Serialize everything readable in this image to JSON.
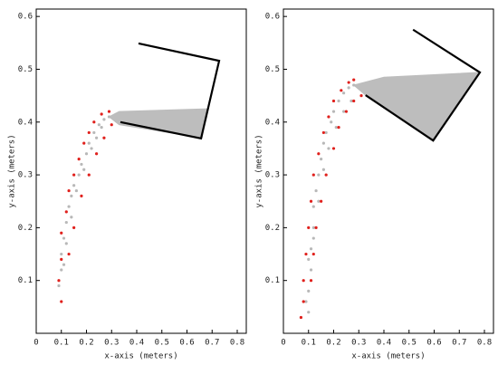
{
  "chart_data": [
    {
      "type": "scatter",
      "xlabel": "x-axis (meters)",
      "ylabel": "y-axis (meters)",
      "xlim": [
        0,
        0.836
      ],
      "ylim": [
        0,
        0.614
      ],
      "xticks": [
        0,
        0.1,
        0.2,
        0.3,
        0.4,
        0.5,
        0.6,
        0.7,
        0.8
      ],
      "yticks": [
        0.1,
        0.2,
        0.3,
        0.4,
        0.5,
        0.6
      ],
      "series": [
        {
          "style": "area",
          "color": "#bdbdbd",
          "x": [
            0.29,
            0.33,
            0.68,
            0.66,
            0.33
          ],
          "values": [
            0.41,
            0.42,
            0.425,
            0.37,
            0.395
          ]
        },
        {
          "style": "points",
          "color": "#b8b8b8",
          "x": [
            0.09,
            0.1,
            0.1,
            0.11,
            0.12,
            0.13,
            0.14,
            0.15,
            0.17,
            0.18,
            0.2,
            0.21,
            0.23,
            0.25,
            0.27,
            0.29,
            0.11,
            0.12,
            0.14,
            0.16,
            0.19,
            0.22,
            0.24,
            0.26
          ],
          "values": [
            0.09,
            0.12,
            0.15,
            0.18,
            0.21,
            0.24,
            0.26,
            0.28,
            0.3,
            0.32,
            0.34,
            0.36,
            0.38,
            0.395,
            0.405,
            0.41,
            0.13,
            0.17,
            0.22,
            0.27,
            0.31,
            0.35,
            0.37,
            0.39
          ]
        },
        {
          "style": "points",
          "color": "#e0201c",
          "x": [
            0.1,
            0.09,
            0.1,
            0.1,
            0.12,
            0.13,
            0.15,
            0.17,
            0.19,
            0.21,
            0.23,
            0.26,
            0.29,
            0.13,
            0.15,
            0.18,
            0.21,
            0.24,
            0.27,
            0.3
          ],
          "values": [
            0.06,
            0.1,
            0.14,
            0.19,
            0.23,
            0.27,
            0.3,
            0.33,
            0.36,
            0.38,
            0.4,
            0.415,
            0.42,
            0.15,
            0.2,
            0.26,
            0.3,
            0.34,
            0.37,
            0.395
          ]
        },
        {
          "style": "line",
          "color": "#000000",
          "x": [
            0.407,
            0.728,
            0.656,
            0.335
          ],
          "values": [
            0.549,
            0.516,
            0.369,
            0.4
          ]
        }
      ]
    },
    {
      "type": "scatter",
      "xlabel": "x-axis (meters)",
      "ylabel": "y-axis (meters)",
      "xlim": [
        0,
        0.836
      ],
      "ylim": [
        0,
        0.614
      ],
      "xticks": [
        0,
        0.1,
        0.2,
        0.3,
        0.4,
        0.5,
        0.6,
        0.7,
        0.8
      ],
      "yticks": [
        0.1,
        0.2,
        0.3,
        0.4,
        0.5,
        0.6
      ],
      "series": [
        {
          "style": "area",
          "color": "#bdbdbd",
          "x": [
            0.28,
            0.4,
            0.782,
            0.596,
            0.327
          ],
          "values": [
            0.47,
            0.485,
            0.494,
            0.365,
            0.451
          ]
        },
        {
          "style": "points",
          "color": "#b8b8b8",
          "x": [
            0.1,
            0.1,
            0.11,
            0.11,
            0.12,
            0.12,
            0.13,
            0.14,
            0.15,
            0.16,
            0.17,
            0.19,
            0.2,
            0.22,
            0.24,
            0.26,
            0.28,
            0.09,
            0.1,
            0.12,
            0.14,
            0.16,
            0.18,
            0.21,
            0.24,
            0.27
          ],
          "values": [
            0.04,
            0.08,
            0.12,
            0.16,
            0.2,
            0.24,
            0.27,
            0.3,
            0.33,
            0.36,
            0.38,
            0.4,
            0.42,
            0.44,
            0.455,
            0.465,
            0.47,
            0.06,
            0.14,
            0.18,
            0.25,
            0.31,
            0.35,
            0.39,
            0.42,
            0.44
          ]
        },
        {
          "style": "points",
          "color": "#e0201c",
          "x": [
            0.07,
            0.08,
            0.08,
            0.09,
            0.1,
            0.11,
            0.12,
            0.14,
            0.16,
            0.18,
            0.2,
            0.23,
            0.26,
            0.28,
            0.31,
            0.28,
            0.25,
            0.22,
            0.2,
            0.17,
            0.15,
            0.13,
            0.12,
            0.11
          ],
          "values": [
            0.03,
            0.06,
            0.1,
            0.15,
            0.2,
            0.25,
            0.3,
            0.34,
            0.38,
            0.41,
            0.44,
            0.46,
            0.475,
            0.48,
            0.45,
            0.44,
            0.42,
            0.39,
            0.35,
            0.3,
            0.25,
            0.2,
            0.15,
            0.1
          ]
        },
        {
          "style": "line",
          "color": "#000000",
          "x": [
            0.516,
            0.782,
            0.596,
            0.327
          ],
          "values": [
            0.575,
            0.494,
            0.365,
            0.451
          ]
        }
      ]
    }
  ]
}
